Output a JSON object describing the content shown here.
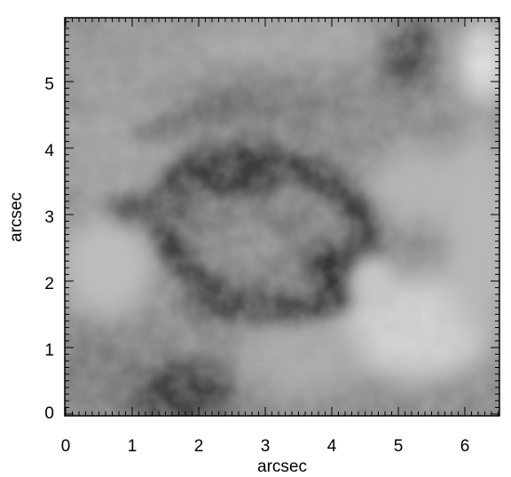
{
  "figure": {
    "xlabel": "arcsec",
    "ylabel": "arcsec",
    "x_ticks": [
      "0",
      "1",
      "2",
      "3",
      "4",
      "5",
      "6"
    ],
    "y_ticks": [
      "0",
      "1",
      "2",
      "3",
      "4",
      "5"
    ],
    "x_range": [
      0,
      6.55
    ],
    "y_range": [
      0,
      5.95
    ],
    "colormap": "grayscale",
    "frame_color": "#000000",
    "background": "#ffffff"
  }
}
